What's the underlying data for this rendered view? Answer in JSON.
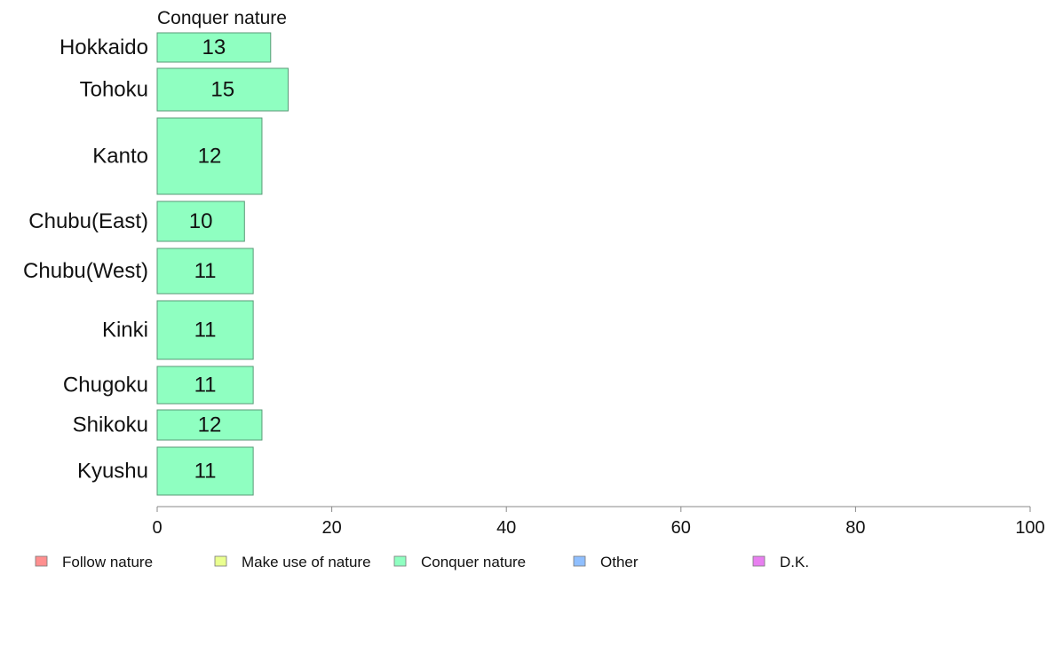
{
  "chart_data": {
    "type": "bar",
    "orientation": "horizontal",
    "title": "Conquer nature",
    "categories": [
      "Hokkaido",
      "Tohoku",
      "Kanto",
      "Chubu(East)",
      "Chubu(West)",
      "Kinki",
      "Chugoku",
      "Shikoku",
      "Kyushu"
    ],
    "series": [
      {
        "name": "Conquer nature",
        "values": [
          13,
          15,
          12,
          10,
          11,
          11,
          11,
          12,
          11
        ],
        "color": "#8fffc1"
      }
    ],
    "xlim": [
      0,
      100
    ],
    "xticks": [
      0,
      20,
      40,
      60,
      80,
      100
    ],
    "legend": {
      "position": "bottom",
      "entries": [
        {
          "label": "Follow nature",
          "color": "#ff8f8f"
        },
        {
          "label": "Make use of nature",
          "color": "#eaff8f"
        },
        {
          "label": "Conquer nature",
          "color": "#8fffc1"
        },
        {
          "label": "Other",
          "color": "#8fbfff"
        },
        {
          "label": "D.K.",
          "color": "#e87ff0"
        }
      ]
    },
    "grid": false
  }
}
